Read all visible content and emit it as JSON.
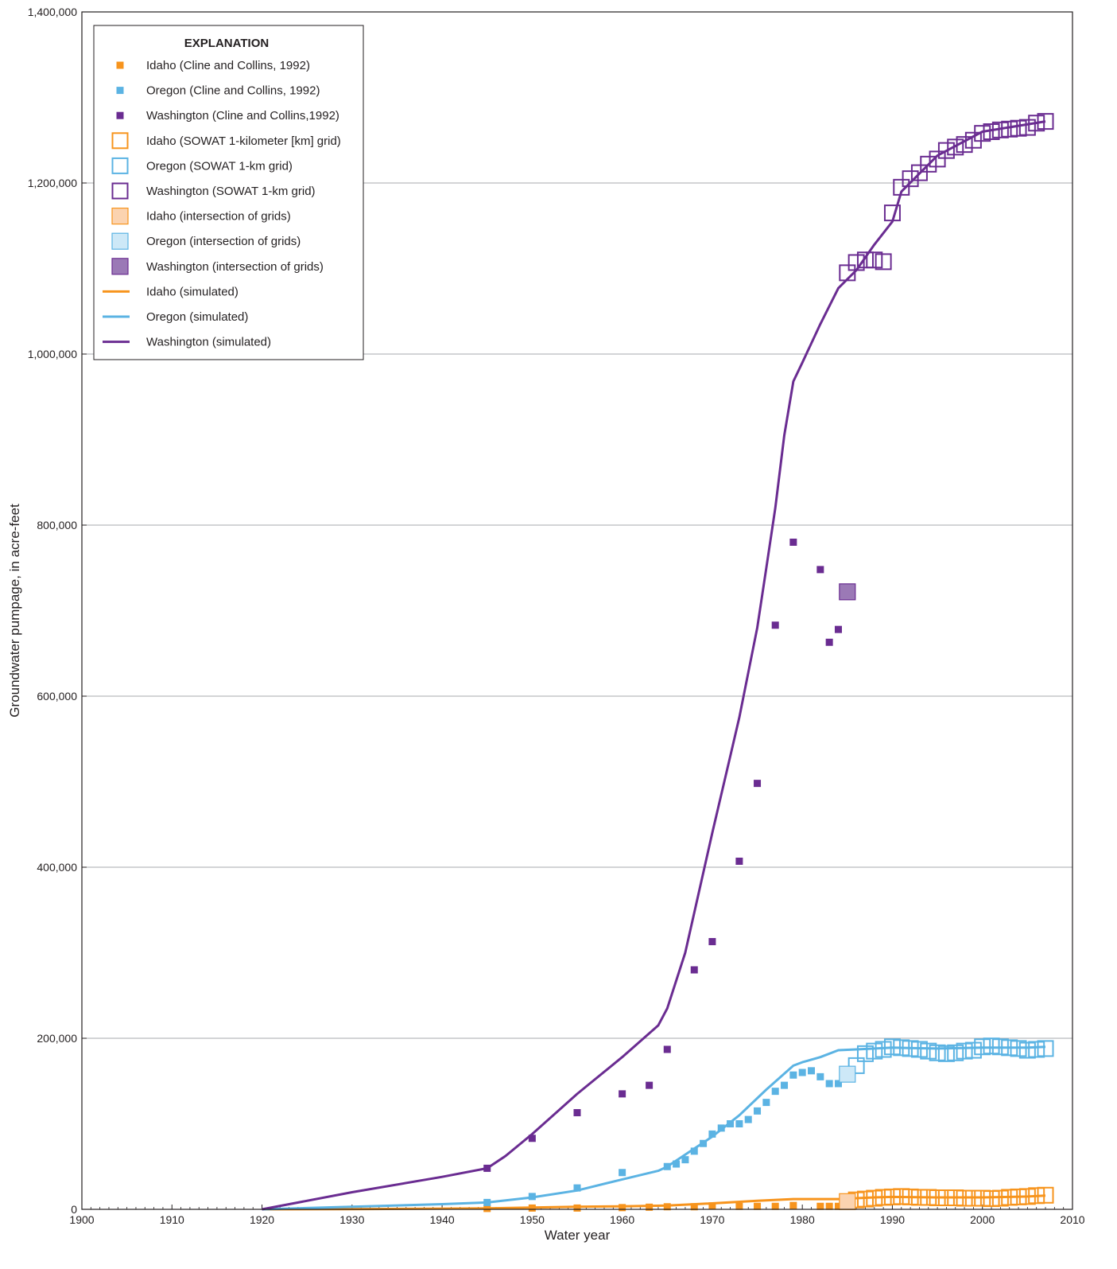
{
  "chart_data": {
    "type": "scatter",
    "title": "",
    "xlabel": "Water year",
    "ylabel": "Groundwater pumpage, in acre-feet",
    "xlim": [
      1900,
      2010
    ],
    "ylim": [
      0,
      1400000
    ],
    "x_ticks": [
      1900,
      1910,
      1920,
      1930,
      1940,
      1950,
      1960,
      1970,
      1980,
      1990,
      2000,
      2010
    ],
    "y_ticks": [
      0,
      200000,
      400000,
      600000,
      800000,
      1000000,
      1200000,
      1400000
    ],
    "x_tick_labels": [
      "1900",
      "1910",
      "1920",
      "1930",
      "1940",
      "1950",
      "1960",
      "1970",
      "1980",
      "1990",
      "2000",
      "2010"
    ],
    "y_tick_labels": [
      "0",
      "200,000",
      "400,000",
      "600,000",
      "800,000",
      "1,000,000",
      "1,200,000",
      "1,400,000"
    ],
    "grid": "horizontal",
    "legend_position": "top-left",
    "legend_title": "EXPLANATION",
    "series": [
      {
        "name": "Idaho (Cline and Collins, 1992)",
        "kind": "small-square",
        "color": "#f7941d",
        "x": [
          1945,
          1950,
          1955,
          1960,
          1963,
          1965,
          1968,
          1970,
          1973,
          1975,
          1977,
          1979,
          1982,
          1983,
          1984
        ],
        "y": [
          1000,
          1500,
          1500,
          2000,
          2500,
          3000,
          3000,
          4000,
          3500,
          3500,
          3500,
          4500,
          3500,
          3500,
          3500
        ]
      },
      {
        "name": "Oregon (Cline and Collins, 1992)",
        "kind": "small-square",
        "color": "#5bb3e3",
        "x": [
          1945,
          1950,
          1955,
          1960,
          1965,
          1966,
          1967,
          1968,
          1969,
          1970,
          1971,
          1972,
          1973,
          1974,
          1975,
          1976,
          1977,
          1978,
          1979,
          1980,
          1981,
          1982,
          1983,
          1984
        ],
        "y": [
          8000,
          15000,
          25000,
          43000,
          50000,
          53000,
          58000,
          68000,
          77000,
          88000,
          95000,
          100000,
          100000,
          105000,
          115000,
          125000,
          138000,
          145000,
          157000,
          160000,
          162000,
          155000,
          147000,
          147000
        ]
      },
      {
        "name": "Washington (Cline and Collins,1992)",
        "kind": "small-square",
        "color": "#6a2c91",
        "x": [
          1945,
          1950,
          1955,
          1960,
          1963,
          1965,
          1968,
          1970,
          1973,
          1975,
          1977,
          1979,
          1982,
          1983,
          1984
        ],
        "y": [
          48000,
          83000,
          113000,
          135000,
          145000,
          187000,
          280000,
          313000,
          407000,
          498000,
          683000,
          780000,
          748000,
          663000,
          678000
        ]
      },
      {
        "name": "Idaho (SOWAT 1-kilometer [km] grid)",
        "kind": "open-square",
        "color": "#f7941d",
        "x": [
          1986,
          1987,
          1988,
          1989,
          1990,
          1991,
          1992,
          1993,
          1994,
          1995,
          1996,
          1997,
          1998,
          1999,
          2000,
          2001,
          2002,
          2003,
          2004,
          2005,
          2006,
          2007
        ],
        "y": [
          11000,
          12000,
          13000,
          14000,
          14500,
          15000,
          14500,
          14000,
          14000,
          13500,
          13500,
          13500,
          13000,
          13000,
          13000,
          12500,
          13000,
          14000,
          14500,
          15000,
          16000,
          16500
        ]
      },
      {
        "name": "Oregon (SOWAT 1-km grid)",
        "kind": "open-square",
        "color": "#5bb3e3",
        "x": [
          1986,
          1987,
          1988,
          1989,
          1990,
          1991,
          1992,
          1993,
          1994,
          1995,
          1996,
          1997,
          1998,
          1999,
          2000,
          2001,
          2002,
          2003,
          2004,
          2005,
          2006,
          2007
        ],
        "y": [
          168000,
          182000,
          185000,
          187000,
          190000,
          189000,
          188000,
          187000,
          185000,
          183000,
          182000,
          183000,
          185000,
          186000,
          190000,
          191000,
          190000,
          189000,
          188000,
          186000,
          187000,
          188000
        ]
      },
      {
        "name": "Washington (SOWAT 1-km grid)",
        "kind": "open-square",
        "color": "#6a2c91",
        "x": [
          1985,
          1986,
          1987,
          1988,
          1989,
          1990,
          1991,
          1992,
          1993,
          1994,
          1995,
          1996,
          1997,
          1998,
          1999,
          2000,
          2001,
          2002,
          2003,
          2004,
          2005,
          2006,
          2007
        ],
        "y": [
          1095000,
          1107000,
          1110000,
          1110000,
          1108000,
          1165000,
          1195000,
          1205000,
          1212000,
          1222000,
          1228000,
          1238000,
          1242000,
          1245000,
          1250000,
          1258000,
          1260000,
          1262000,
          1263000,
          1264000,
          1265000,
          1270000,
          1272000
        ]
      },
      {
        "name": "Idaho (intersection of grids)",
        "kind": "filled-square",
        "color": "#fbd3b0",
        "stroke": "#f7941d",
        "x": [
          1985
        ],
        "y": [
          9000
        ]
      },
      {
        "name": "Oregon (intersection of grids)",
        "kind": "filled-square",
        "color": "#cde8f7",
        "stroke": "#5bb3e3",
        "x": [
          1985
        ],
        "y": [
          158000
        ]
      },
      {
        "name": "Washington (intersection of grids)",
        "kind": "filled-square",
        "color": "#9b79b6",
        "stroke": "#6a2c91",
        "x": [
          1985
        ],
        "y": [
          722000
        ]
      },
      {
        "name": "Idaho (simulated)",
        "kind": "line",
        "color": "#f7941d",
        "x": [
          1920,
          1930,
          1940,
          1945,
          1950,
          1955,
          1960,
          1965,
          1970,
          1975,
          1979,
          1984,
          1986,
          1988,
          1990,
          1995,
          2000,
          2005,
          2007
        ],
        "y": [
          0,
          300,
          800,
          1200,
          2000,
          3000,
          3500,
          4500,
          7000,
          10000,
          12000,
          12000,
          13000,
          14000,
          14500,
          14000,
          14000,
          15000,
          16000
        ]
      },
      {
        "name": "Oregon (simulated)",
        "kind": "line",
        "color": "#5bb3e3",
        "x": [
          1920,
          1930,
          1940,
          1945,
          1950,
          1955,
          1960,
          1964,
          1965,
          1970,
          1973,
          1976,
          1979,
          1980,
          1982,
          1984,
          1986,
          1988,
          1990,
          1995,
          2000,
          2005,
          2007
        ],
        "y": [
          0,
          3000,
          6000,
          8000,
          14000,
          22000,
          35000,
          45000,
          50000,
          85000,
          110000,
          140000,
          168000,
          172000,
          178000,
          186000,
          187000,
          188000,
          189000,
          188000,
          189000,
          189000,
          190000
        ]
      },
      {
        "name": "Washington (simulated)",
        "kind": "line",
        "color": "#6a2c91",
        "x": [
          1920,
          1930,
          1940,
          1945,
          1947,
          1950,
          1955,
          1960,
          1964,
          1965,
          1967,
          1970,
          1972,
          1973,
          1975,
          1976,
          1977,
          1978,
          1979,
          1980,
          1982,
          1984,
          1986,
          1988,
          1990,
          1991,
          1995,
          2000,
          2007
        ],
        "y": [
          0,
          20000,
          38000,
          48000,
          62000,
          88000,
          135000,
          178000,
          215000,
          235000,
          300000,
          440000,
          530000,
          575000,
          680000,
          750000,
          820000,
          905000,
          968000,
          990000,
          1035000,
          1077000,
          1098000,
          1128000,
          1155000,
          1190000,
          1232000,
          1260000,
          1272000
        ]
      }
    ]
  }
}
